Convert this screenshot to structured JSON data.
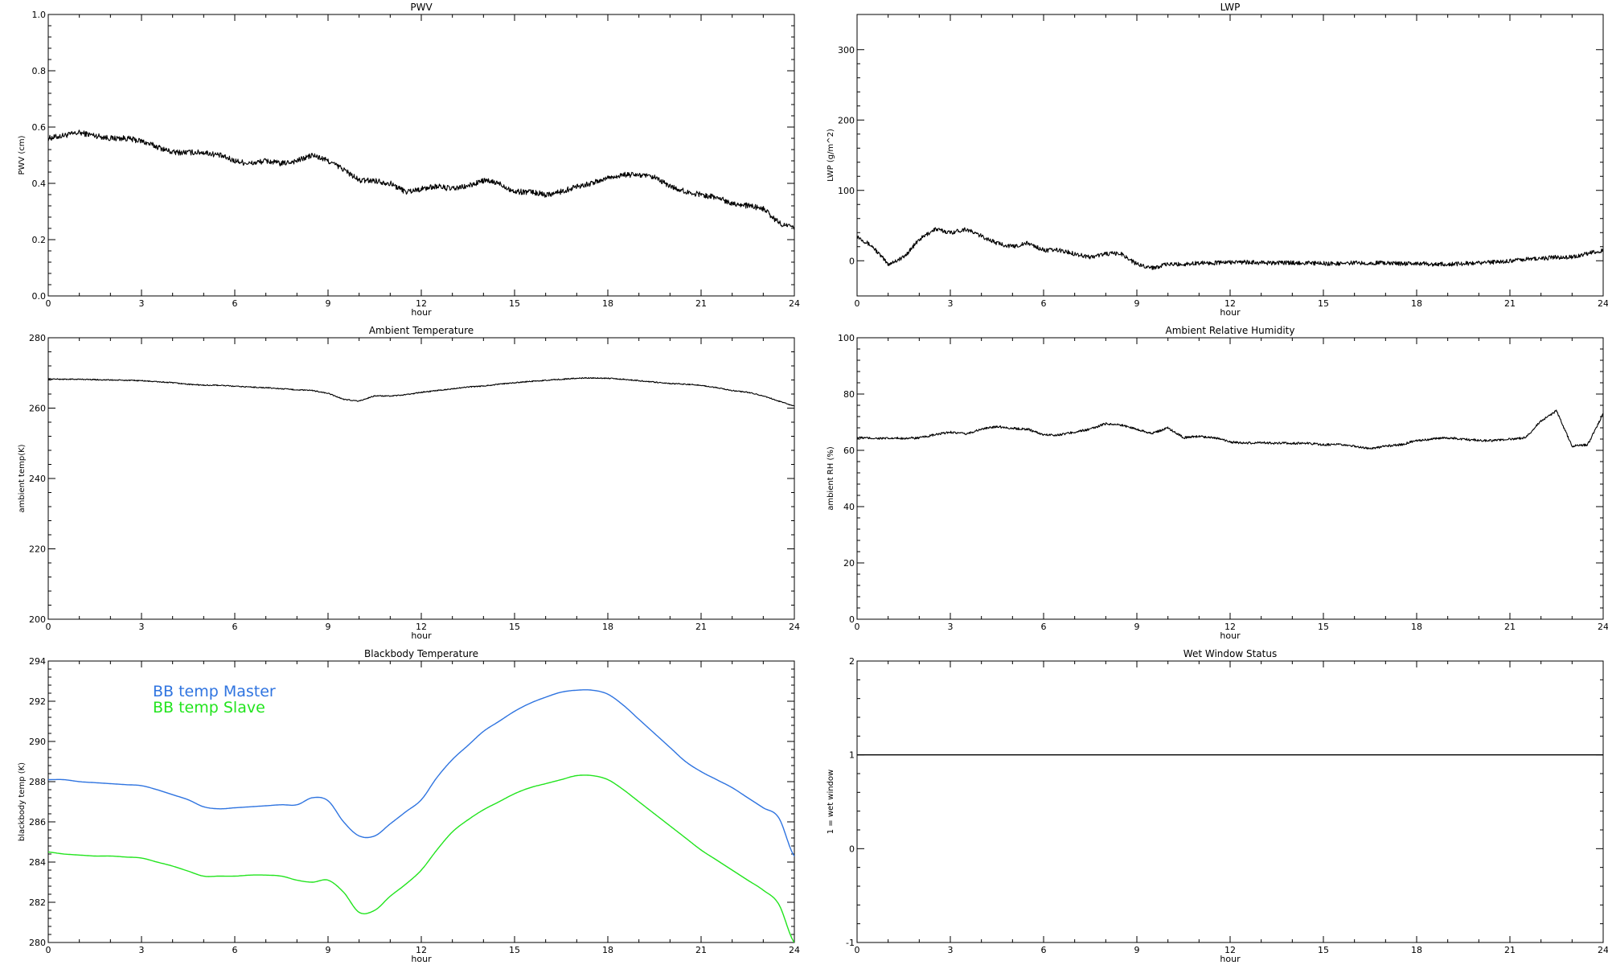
{
  "chart_data": [
    {
      "type": "line",
      "title": "PWV",
      "xlabel": "hour",
      "ylabel": "PWV (cm)",
      "xlim": [
        0,
        24
      ],
      "ylim": [
        0,
        1.0
      ],
      "xticks": [
        "0",
        "3",
        "6",
        "9",
        "12",
        "15",
        "18",
        "21",
        "24"
      ],
      "yticks": [
        "0.0",
        "0.2",
        "0.4",
        "0.6",
        "0.8",
        "1.0"
      ],
      "noise": 0.01,
      "series": [
        {
          "color": "#000000",
          "x": [
            0,
            0.5,
            1,
            1.5,
            2,
            2.5,
            3,
            3.5,
            4,
            4.5,
            5,
            5.5,
            6,
            6.5,
            7,
            7.5,
            8,
            8.5,
            9,
            9.5,
            10,
            10.5,
            11,
            11.5,
            12,
            12.5,
            13,
            13.5,
            14,
            14.5,
            15,
            15.5,
            16,
            16.5,
            17,
            17.5,
            18,
            18.5,
            19,
            19.5,
            20,
            20.5,
            21,
            21.5,
            22,
            22.5,
            23,
            23.5,
            24
          ],
          "y": [
            0.56,
            0.57,
            0.58,
            0.57,
            0.56,
            0.56,
            0.55,
            0.53,
            0.51,
            0.51,
            0.51,
            0.5,
            0.48,
            0.47,
            0.48,
            0.47,
            0.48,
            0.5,
            0.48,
            0.45,
            0.41,
            0.41,
            0.4,
            0.37,
            0.38,
            0.39,
            0.38,
            0.39,
            0.41,
            0.4,
            0.37,
            0.37,
            0.36,
            0.37,
            0.39,
            0.4,
            0.42,
            0.43,
            0.43,
            0.42,
            0.39,
            0.37,
            0.36,
            0.35,
            0.33,
            0.32,
            0.31,
            0.26,
            0.24
          ]
        }
      ]
    },
    {
      "type": "line",
      "title": "LWP",
      "xlabel": "hour",
      "ylabel": "LWP (g/m^2)",
      "xlim": [
        0,
        24
      ],
      "ylim": [
        -50,
        350
      ],
      "xticks": [
        "0",
        "3",
        "6",
        "9",
        "12",
        "15",
        "18",
        "21",
        "24"
      ],
      "yticks": [
        "0",
        "100",
        "200",
        "300"
      ],
      "noise": 3,
      "series": [
        {
          "color": "#000000",
          "x": [
            0,
            0.5,
            1,
            1.5,
            2,
            2.5,
            3,
            3.5,
            4,
            4.5,
            5,
            5.5,
            6,
            6.5,
            7,
            7.5,
            8,
            8.5,
            9,
            9.5,
            10,
            10.5,
            11,
            11.5,
            12,
            12.5,
            13,
            13.5,
            14,
            14.5,
            15,
            15.5,
            16,
            16.5,
            17,
            17.5,
            18,
            18.5,
            19,
            19.5,
            20,
            20.5,
            21,
            21.5,
            22,
            22.5,
            23,
            23.5,
            24
          ],
          "y": [
            35,
            20,
            -5,
            5,
            30,
            45,
            40,
            45,
            35,
            25,
            20,
            25,
            15,
            15,
            10,
            5,
            10,
            10,
            -5,
            -10,
            -5,
            -5,
            -3,
            -3,
            -2,
            -2,
            -3,
            -3,
            -3,
            -3,
            -4,
            -4,
            -3,
            -3,
            -3,
            -4,
            -4,
            -5,
            -5,
            -4,
            -3,
            -2,
            0,
            2,
            3,
            5,
            5,
            10,
            15
          ]
        }
      ]
    },
    {
      "type": "line",
      "title": "Ambient Temperature",
      "xlabel": "hour",
      "ylabel": "ambient temp(K)",
      "xlim": [
        0,
        24
      ],
      "ylim": [
        200,
        280
      ],
      "xticks": [
        "0",
        "3",
        "6",
        "9",
        "12",
        "15",
        "18",
        "21",
        "24"
      ],
      "yticks": [
        "200",
        "220",
        "240",
        "260",
        "280"
      ],
      "noise": 0.15,
      "series": [
        {
          "color": "#000000",
          "x": [
            0,
            0.5,
            1,
            1.5,
            2,
            2.5,
            3,
            3.5,
            4,
            4.5,
            5,
            5.5,
            6,
            6.5,
            7,
            7.5,
            8,
            8.5,
            9,
            9.5,
            10,
            10.5,
            11,
            11.5,
            12,
            12.5,
            13,
            13.5,
            14,
            14.5,
            15,
            15.5,
            16,
            16.5,
            17,
            17.5,
            18,
            18.5,
            19,
            19.5,
            20,
            20.5,
            21,
            21.5,
            22,
            22.5,
            23,
            23.5,
            24
          ],
          "y": [
            268.3,
            268.2,
            268.2,
            268.1,
            268,
            267.9,
            267.8,
            267.5,
            267.2,
            266.8,
            266.5,
            266.5,
            266.2,
            266,
            265.8,
            265.5,
            265.2,
            265,
            264.2,
            262.5,
            262,
            263.5,
            263.4,
            263.8,
            264.5,
            265,
            265.5,
            266,
            266.3,
            266.8,
            267.2,
            267.6,
            267.9,
            268.2,
            268.5,
            268.6,
            268.5,
            268.2,
            267.8,
            267.4,
            267,
            266.8,
            266.5,
            265.8,
            265,
            264.5,
            263.5,
            262,
            260.5
          ]
        }
      ]
    },
    {
      "type": "line",
      "title": "Ambient Relative Humidity",
      "xlabel": "hour",
      "ylabel": "ambient RH (%)",
      "xlim": [
        0,
        24
      ],
      "ylim": [
        0,
        100
      ],
      "xticks": [
        "0",
        "3",
        "6",
        "9",
        "12",
        "15",
        "18",
        "21",
        "24"
      ],
      "yticks": [
        "0",
        "20",
        "40",
        "60",
        "80",
        "100"
      ],
      "noise": 0.4,
      "series": [
        {
          "color": "#000000",
          "x": [
            0,
            0.5,
            1,
            1.5,
            2,
            2.5,
            3,
            3.5,
            4,
            4.5,
            5,
            5.5,
            6,
            6.5,
            7,
            7.5,
            8,
            8.5,
            9,
            9.5,
            10,
            10.5,
            11,
            11.5,
            12,
            12.5,
            13,
            13.5,
            14,
            14.5,
            15,
            15.5,
            16,
            16.5,
            17,
            17.5,
            18,
            18.5,
            19,
            19.5,
            20,
            20.5,
            21,
            21.5,
            22,
            22.5,
            23,
            23.5,
            24
          ],
          "y": [
            64.5,
            64.3,
            64.2,
            64.3,
            64.4,
            65.5,
            66.5,
            65.8,
            67.5,
            68.5,
            67.8,
            67.5,
            65.5,
            65.5,
            66.5,
            67.5,
            69.5,
            69,
            67.5,
            66,
            68,
            64.5,
            65,
            64.5,
            63,
            62.5,
            62.8,
            62.5,
            62.5,
            62.5,
            62,
            62,
            61.5,
            60.5,
            61.5,
            62,
            63.5,
            64,
            64.5,
            64,
            63.5,
            63.5,
            64,
            64.5,
            70.5,
            74,
            61.5,
            62,
            73
          ]
        }
      ]
    },
    {
      "type": "line",
      "title": "Blackbody Temperature",
      "xlabel": "hour",
      "ylabel": "blackbody temp (K)",
      "xlim": [
        0,
        24
      ],
      "ylim": [
        280,
        294
      ],
      "xticks": [
        "0",
        "3",
        "6",
        "9",
        "12",
        "15",
        "18",
        "21",
        "24"
      ],
      "yticks": [
        "280",
        "282",
        "284",
        "286",
        "288",
        "290",
        "292",
        "294"
      ],
      "noise": 0,
      "legend_position": "upper-left",
      "series": [
        {
          "name": "BB temp Master",
          "color": "#2f74e0",
          "x": [
            0,
            0.5,
            1,
            1.5,
            2,
            2.5,
            3,
            3.5,
            4,
            4.5,
            5,
            5.5,
            6,
            6.5,
            7,
            7.5,
            8,
            8.5,
            9,
            9.5,
            10,
            10.5,
            11,
            11.5,
            12,
            12.5,
            13,
            13.5,
            14,
            14.5,
            15,
            15.5,
            16,
            16.5,
            17,
            17.5,
            18,
            18.5,
            19,
            19.5,
            20,
            20.5,
            21,
            21.5,
            22,
            22.5,
            23,
            23.5,
            24
          ],
          "y": [
            288.1,
            288.1,
            288,
            287.95,
            287.9,
            287.85,
            287.8,
            287.6,
            287.35,
            287.1,
            286.75,
            286.65,
            286.7,
            286.75,
            286.8,
            286.85,
            286.85,
            287.2,
            287.05,
            286,
            285.3,
            285.3,
            285.9,
            286.5,
            287.1,
            288.2,
            289.1,
            289.8,
            290.5,
            291,
            291.5,
            291.9,
            292.2,
            292.45,
            292.55,
            292.55,
            292.35,
            291.8,
            291.1,
            290.4,
            289.7,
            289,
            288.5,
            288.1,
            287.7,
            287.2,
            286.7,
            286.2,
            284.3
          ]
        },
        {
          "name": "BB temp Slave",
          "color": "#22e41e",
          "x": [
            0,
            0.5,
            1,
            1.5,
            2,
            2.5,
            3,
            3.5,
            4,
            4.5,
            5,
            5.5,
            6,
            6.5,
            7,
            7.5,
            8,
            8.5,
            9,
            9.5,
            10,
            10.5,
            11,
            11.5,
            12,
            12.5,
            13,
            13.5,
            14,
            14.5,
            15,
            15.5,
            16,
            16.5,
            17,
            17.5,
            18,
            18.5,
            19,
            19.5,
            20,
            20.5,
            21,
            21.5,
            22,
            22.5,
            23,
            23.5,
            24
          ],
          "y": [
            284.5,
            284.4,
            284.35,
            284.3,
            284.3,
            284.25,
            284.2,
            284,
            283.8,
            283.55,
            283.3,
            283.3,
            283.3,
            283.35,
            283.35,
            283.3,
            283.1,
            283,
            283.1,
            282.5,
            281.5,
            281.6,
            282.3,
            282.9,
            283.6,
            284.6,
            285.5,
            286.1,
            286.6,
            287,
            287.4,
            287.7,
            287.9,
            288.1,
            288.3,
            288.3,
            288.1,
            287.6,
            287,
            286.4,
            285.8,
            285.2,
            284.6,
            284.1,
            283.6,
            283.1,
            282.6,
            281.9,
            280
          ]
        }
      ]
    },
    {
      "type": "line",
      "title": "Wet Window Status",
      "xlabel": "hour",
      "ylabel": "1 = wet window",
      "xlim": [
        0,
        24
      ],
      "ylim": [
        -1,
        2
      ],
      "xticks": [
        "0",
        "3",
        "6",
        "9",
        "12",
        "15",
        "18",
        "21",
        "24"
      ],
      "yticks": [
        "-1",
        "0",
        "1",
        "2"
      ],
      "noise": 0,
      "series": [
        {
          "color": "#000000",
          "x": [
            0,
            24
          ],
          "y": [
            1,
            1
          ]
        }
      ]
    }
  ]
}
